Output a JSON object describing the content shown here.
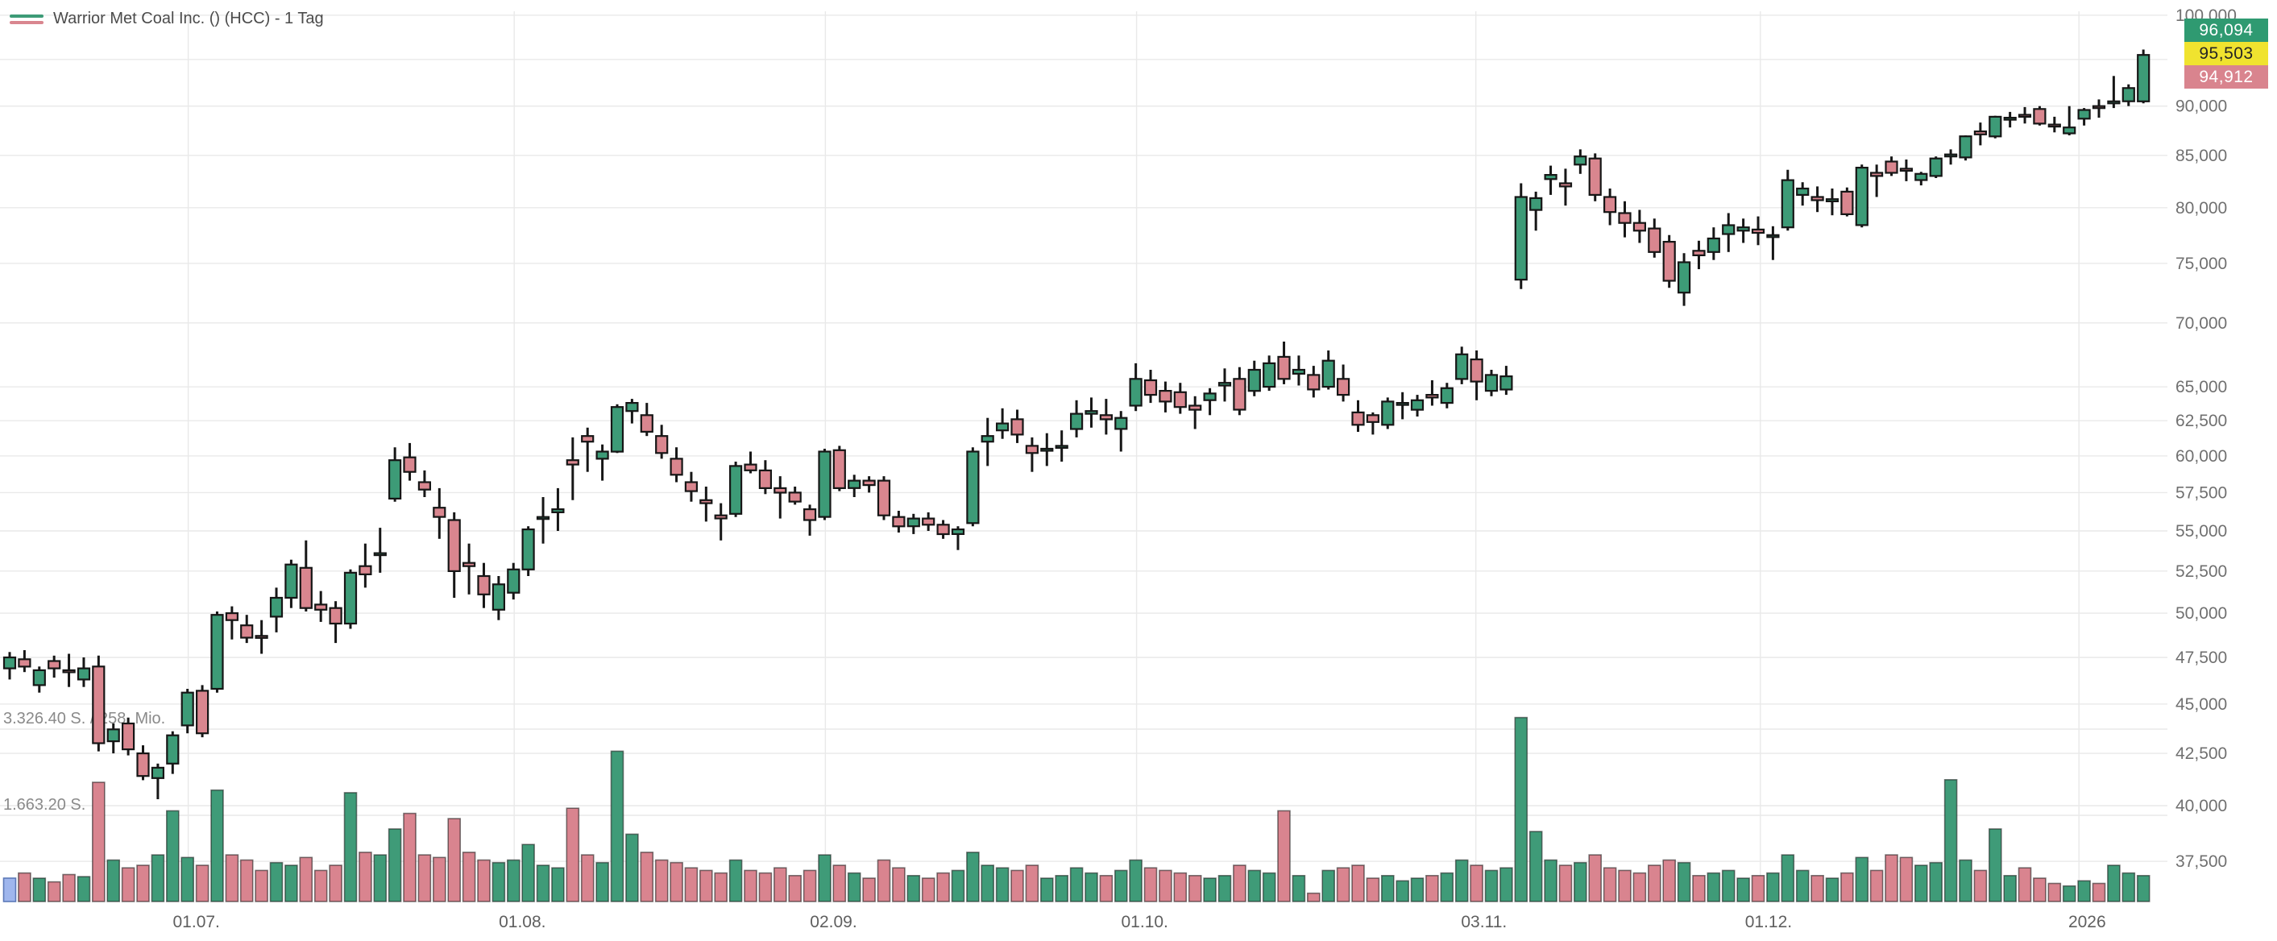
{
  "legend": {
    "title": "Warrior Met Coal Inc. () (HCC) - 1 Tag",
    "up_line_color": "#3d9b77",
    "down_line_color": "#d9868f"
  },
  "price_badges": [
    {
      "key": "badge-green",
      "text": "96,094",
      "bg": "#2f9a71",
      "fg": "#ffffff"
    },
    {
      "key": "badge-yellow",
      "text": "95,503",
      "bg": "#f0e32f",
      "fg": "#252525"
    },
    {
      "key": "badge-red",
      "text": "94,912",
      "bg": "#d9848e",
      "fg": "#ffffff"
    }
  ],
  "chart_data": {
    "type": "candlestick",
    "title": "Warrior Met Coal Inc. () (HCC) - 1 Tag",
    "timeframe": "1 Tag",
    "y_scale": "log",
    "y_ticks": [
      {
        "v": 100000,
        "label": "100,000"
      },
      {
        "v": 95000,
        "label": ""
      },
      {
        "v": 90000,
        "label": "90,000"
      },
      {
        "v": 85000,
        "label": "85,000"
      },
      {
        "v": 80000,
        "label": "80,000"
      },
      {
        "v": 75000,
        "label": "75,000"
      },
      {
        "v": 70000,
        "label": "70,000"
      },
      {
        "v": 65000,
        "label": "65,000"
      },
      {
        "v": 62500,
        "label": "62,500"
      },
      {
        "v": 60000,
        "label": "60,000"
      },
      {
        "v": 57500,
        "label": "57,500"
      },
      {
        "v": 55000,
        "label": "55,000"
      },
      {
        "v": 52500,
        "label": "52,500"
      },
      {
        "v": 50000,
        "label": "50,000"
      },
      {
        "v": 47500,
        "label": "47,500"
      },
      {
        "v": 45000,
        "label": "45,000"
      },
      {
        "v": 42500,
        "label": "42,500"
      },
      {
        "v": 40000,
        "label": "40,000"
      },
      {
        "v": 37500,
        "label": "37,500"
      }
    ],
    "x_labels": [
      {
        "text": "01.07.",
        "i": 12.6
      },
      {
        "text": "01.08.",
        "i": 34.6
      },
      {
        "text": "02.09.",
        "i": 55.6
      },
      {
        "text": "01.10.",
        "i": 76.6
      },
      {
        "text": "03.11.",
        "i": 99.5
      },
      {
        "text": "01.12.",
        "i": 118.7
      },
      {
        "text": "2026",
        "i": 140.2
      }
    ],
    "volume_gridlines": [
      {
        "label": "3.326.40 S. / 258, Mio.",
        "value": 3326400
      },
      {
        "label": "1.663.20 S.",
        "value": 1663200
      }
    ],
    "candles": [
      [
        46900,
        47800,
        46300,
        47500
      ],
      [
        47400,
        47900,
        46700,
        47000
      ],
      [
        46000,
        47000,
        45600,
        46800
      ],
      [
        47300,
        47600,
        46400,
        46900
      ],
      [
        46800,
        47700,
        45900,
        46700
      ],
      [
        46300,
        47500,
        45900,
        46900
      ],
      [
        47000,
        47600,
        42600,
        43000
      ],
      [
        43100,
        44000,
        42500,
        43700
      ],
      [
        44000,
        44300,
        42400,
        42700
      ],
      [
        42500,
        42900,
        41200,
        41400
      ],
      [
        41300,
        42000,
        40300,
        41800
      ],
      [
        42000,
        43600,
        41500,
        43400
      ],
      [
        43900,
        45800,
        43500,
        45600
      ],
      [
        45700,
        46000,
        43300,
        43500
      ],
      [
        45800,
        50100,
        45600,
        49900
      ],
      [
        50000,
        50400,
        48500,
        49600
      ],
      [
        49300,
        49900,
        48300,
        48600
      ],
      [
        48700,
        49600,
        47700,
        48600
      ],
      [
        49800,
        51500,
        48900,
        50900
      ],
      [
        50900,
        53200,
        50300,
        52900
      ],
      [
        52700,
        54400,
        50100,
        50300
      ],
      [
        50500,
        51300,
        49500,
        50200
      ],
      [
        50300,
        50700,
        48300,
        49400
      ],
      [
        49400,
        52600,
        49100,
        52400
      ],
      [
        52800,
        54200,
        51500,
        52300
      ],
      [
        53500,
        55200,
        52400,
        53600
      ],
      [
        57100,
        60600,
        56900,
        59700
      ],
      [
        59900,
        60900,
        58300,
        58900
      ],
      [
        58200,
        59000,
        57200,
        57700
      ],
      [
        56500,
        57800,
        54500,
        55900
      ],
      [
        55700,
        56200,
        50900,
        52500
      ],
      [
        53000,
        54200,
        51100,
        52800
      ],
      [
        52200,
        53000,
        50300,
        51100
      ],
      [
        50200,
        52200,
        49600,
        51700
      ],
      [
        51200,
        53000,
        50800,
        52600
      ],
      [
        52600,
        55300,
        52200,
        55100
      ],
      [
        55800,
        57200,
        54200,
        55900
      ],
      [
        56200,
        57800,
        55000,
        56400
      ],
      [
        59700,
        61300,
        57000,
        59400
      ],
      [
        61400,
        62000,
        58900,
        61000
      ],
      [
        59800,
        60800,
        58300,
        60300
      ],
      [
        60300,
        63700,
        60200,
        63500
      ],
      [
        63200,
        64100,
        62300,
        63800
      ],
      [
        62900,
        63800,
        61400,
        61700
      ],
      [
        61400,
        62200,
        59800,
        60200
      ],
      [
        59800,
        60600,
        58200,
        58700
      ],
      [
        58200,
        58900,
        56900,
        57600
      ],
      [
        57000,
        57900,
        55600,
        56800
      ],
      [
        56000,
        56800,
        54400,
        55800
      ],
      [
        56100,
        59600,
        55900,
        59300
      ],
      [
        59400,
        60300,
        58800,
        59000
      ],
      [
        59000,
        59700,
        57400,
        57800
      ],
      [
        57800,
        58600,
        55800,
        57500
      ],
      [
        57500,
        57900,
        56700,
        56900
      ],
      [
        56400,
        56700,
        54700,
        55700
      ],
      [
        55900,
        60500,
        55700,
        60300
      ],
      [
        60400,
        60700,
        57600,
        57800
      ],
      [
        57800,
        58700,
        57200,
        58300
      ],
      [
        58300,
        58600,
        57500,
        58000
      ],
      [
        58300,
        58600,
        55700,
        56000
      ],
      [
        55900,
        56300,
        54900,
        55300
      ],
      [
        55300,
        56100,
        54800,
        55800
      ],
      [
        55800,
        56200,
        55000,
        55400
      ],
      [
        55400,
        55700,
        54500,
        54800
      ],
      [
        54800,
        55300,
        53800,
        55100
      ],
      [
        55500,
        60600,
        55300,
        60300
      ],
      [
        61000,
        62700,
        59300,
        61400
      ],
      [
        61800,
        63400,
        61200,
        62300
      ],
      [
        62600,
        63300,
        60900,
        61500
      ],
      [
        60700,
        61300,
        58900,
        60200
      ],
      [
        60400,
        61600,
        59300,
        60500
      ],
      [
        60600,
        61800,
        59600,
        60700
      ],
      [
        61900,
        64000,
        61300,
        63000
      ],
      [
        63000,
        64200,
        62000,
        63200
      ],
      [
        62900,
        64100,
        61500,
        62600
      ],
      [
        61900,
        63200,
        60300,
        62700
      ],
      [
        63600,
        66800,
        63200,
        65600
      ],
      [
        65500,
        66300,
        63800,
        64400
      ],
      [
        64700,
        65400,
        63100,
        63900
      ],
      [
        64600,
        65300,
        63000,
        63500
      ],
      [
        63600,
        64300,
        61900,
        63300
      ],
      [
        64000,
        64900,
        62900,
        64500
      ],
      [
        65100,
        66400,
        63900,
        65300
      ],
      [
        65600,
        66500,
        62900,
        63300
      ],
      [
        64700,
        67000,
        64300,
        66300
      ],
      [
        65000,
        67400,
        64700,
        66800
      ],
      [
        67300,
        68500,
        65200,
        65600
      ],
      [
        66000,
        67400,
        65100,
        66300
      ],
      [
        65900,
        66600,
        64200,
        64800
      ],
      [
        65000,
        67800,
        64800,
        67000
      ],
      [
        65600,
        66700,
        63900,
        64400
      ],
      [
        63100,
        64000,
        61700,
        62200
      ],
      [
        62900,
        63100,
        61500,
        62400
      ],
      [
        62200,
        64200,
        61900,
        63900
      ],
      [
        63700,
        64600,
        62600,
        63800
      ],
      [
        63300,
        64400,
        62800,
        64000
      ],
      [
        64400,
        65500,
        63600,
        64200
      ],
      [
        63800,
        65300,
        63400,
        64900
      ],
      [
        65600,
        68100,
        65200,
        67500
      ],
      [
        67100,
        67800,
        64000,
        65400
      ],
      [
        64700,
        66300,
        64300,
        65900
      ],
      [
        64800,
        66600,
        64400,
        65800
      ],
      [
        73600,
        82300,
        72800,
        81000
      ],
      [
        79800,
        81500,
        77900,
        80900
      ],
      [
        82700,
        84000,
        81200,
        83100
      ],
      [
        82300,
        83700,
        80200,
        82000
      ],
      [
        84100,
        85600,
        83200,
        84900
      ],
      [
        84700,
        85200,
        80600,
        81200
      ],
      [
        81000,
        81800,
        78400,
        79600
      ],
      [
        79500,
        80600,
        77300,
        78600
      ],
      [
        78600,
        79800,
        76800,
        77900
      ],
      [
        78100,
        79000,
        75500,
        76000
      ],
      [
        76900,
        77500,
        72900,
        73500
      ],
      [
        72500,
        75900,
        71400,
        75100
      ],
      [
        76100,
        77000,
        74500,
        75700
      ],
      [
        76000,
        78200,
        75300,
        77200
      ],
      [
        77600,
        79500,
        76000,
        78400
      ],
      [
        77900,
        79000,
        76800,
        78200
      ],
      [
        78000,
        79200,
        76600,
        77700
      ],
      [
        77400,
        78300,
        75300,
        77500
      ],
      [
        78200,
        83600,
        77900,
        82600
      ],
      [
        81200,
        82400,
        80200,
        81800
      ],
      [
        81000,
        82000,
        79600,
        80700
      ],
      [
        80600,
        81800,
        79300,
        80800
      ],
      [
        81500,
        81900,
        79200,
        79400
      ],
      [
        78400,
        84100,
        78200,
        83800
      ],
      [
        83300,
        84100,
        81000,
        83000
      ],
      [
        84400,
        84900,
        83000,
        83300
      ],
      [
        83700,
        84600,
        82500,
        83500
      ],
      [
        82600,
        83400,
        82100,
        83200
      ],
      [
        83000,
        84900,
        82800,
        84700
      ],
      [
        84900,
        85600,
        84100,
        85100
      ],
      [
        84800,
        87000,
        84500,
        86900
      ],
      [
        87400,
        88300,
        86000,
        87100
      ],
      [
        86900,
        89000,
        86700,
        88900
      ],
      [
        88700,
        89400,
        87800,
        88800
      ],
      [
        89100,
        89900,
        88200,
        89000
      ],
      [
        89700,
        90000,
        88000,
        88200
      ],
      [
        88100,
        88900,
        87300,
        88000
      ],
      [
        87200,
        90000,
        87000,
        87800
      ],
      [
        88700,
        89800,
        88000,
        89600
      ],
      [
        90000,
        90700,
        88800,
        89900
      ],
      [
        90300,
        93200,
        89800,
        90500
      ],
      [
        90500,
        92300,
        90000,
        91900
      ],
      [
        90500,
        96100,
        90300,
        95500
      ]
    ],
    "volumes": [
      450000,
      550000,
      450000,
      380000,
      520000,
      480000,
      2300000,
      800000,
      650000,
      700000,
      900000,
      1750000,
      850000,
      700000,
      2150000,
      900000,
      800000,
      600000,
      750000,
      700000,
      850000,
      600000,
      700000,
      2100000,
      950000,
      900000,
      1400000,
      1700000,
      900000,
      850000,
      1600000,
      950000,
      800000,
      750000,
      800000,
      1100000,
      700000,
      650000,
      1800000,
      900000,
      750000,
      2900000,
      1300000,
      950000,
      800000,
      750000,
      650000,
      600000,
      550000,
      800000,
      600000,
      550000,
      650000,
      500000,
      600000,
      900000,
      700000,
      550000,
      450000,
      800000,
      650000,
      500000,
      450000,
      550000,
      600000,
      950000,
      700000,
      650000,
      600000,
      700000,
      450000,
      500000,
      650000,
      550000,
      500000,
      600000,
      800000,
      650000,
      600000,
      550000,
      500000,
      450000,
      500000,
      700000,
      600000,
      550000,
      1750000,
      500000,
      160000,
      600000,
      650000,
      700000,
      450000,
      500000,
      400000,
      450000,
      500000,
      550000,
      800000,
      700000,
      600000,
      650000,
      3550000,
      1350000,
      800000,
      700000,
      750000,
      900000,
      650000,
      600000,
      550000,
      700000,
      800000,
      750000,
      500000,
      550000,
      600000,
      450000,
      500000,
      550000,
      900000,
      600000,
      500000,
      450000,
      550000,
      850000,
      600000,
      900000,
      850000,
      700000,
      750000,
      2350000,
      800000,
      600000,
      1400000,
      500000,
      650000,
      450000,
      350000,
      300000,
      400000,
      350000,
      700000,
      550000,
      500000
    ],
    "volume_special_colors": {
      "0": "#9fb6ed"
    },
    "colors": {
      "up": "#3d9b77",
      "down": "#d9868f",
      "candle_border": "#161616",
      "grid": "#e9e9e9",
      "axis_text": "#707070",
      "xlabel_text": "#5f5f5f",
      "volume_text": "#8a8a8a",
      "volume_up": "#3f9b78",
      "volume_down": "#d9848f",
      "volume_blue_border": "#5c79b8"
    }
  }
}
